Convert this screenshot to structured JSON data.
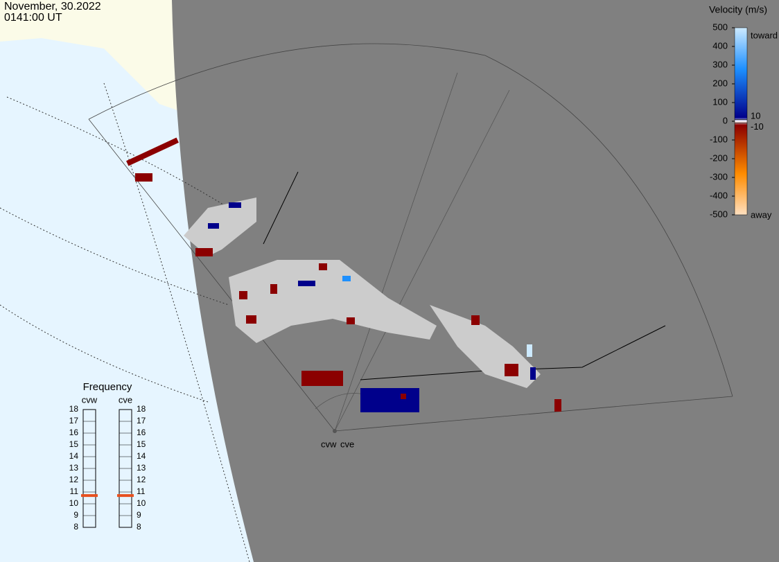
{
  "header": {
    "date": "November, 30.2022",
    "time": "0141:00 UT"
  },
  "velocity_scale": {
    "title": "Velocity (m/s)",
    "lim": [
      -500,
      500
    ],
    "ticks": [
      500,
      400,
      300,
      200,
      100,
      0,
      -100,
      -200,
      -300,
      -400,
      -500
    ],
    "inner_ticks": [
      10,
      -10
    ],
    "toward": "toward",
    "away": "away"
  },
  "frequency": {
    "title": "Frequency",
    "ylim": [
      8,
      18
    ],
    "ticks": [
      18,
      17,
      16,
      15,
      14,
      13,
      12,
      11,
      10,
      9,
      8
    ],
    "radars": [
      {
        "name": "cvw",
        "value": 10.7
      },
      {
        "name": "cve",
        "value": 10.7
      }
    ]
  },
  "map": {
    "radar_labels": [
      "cvw",
      "cve"
    ]
  }
}
